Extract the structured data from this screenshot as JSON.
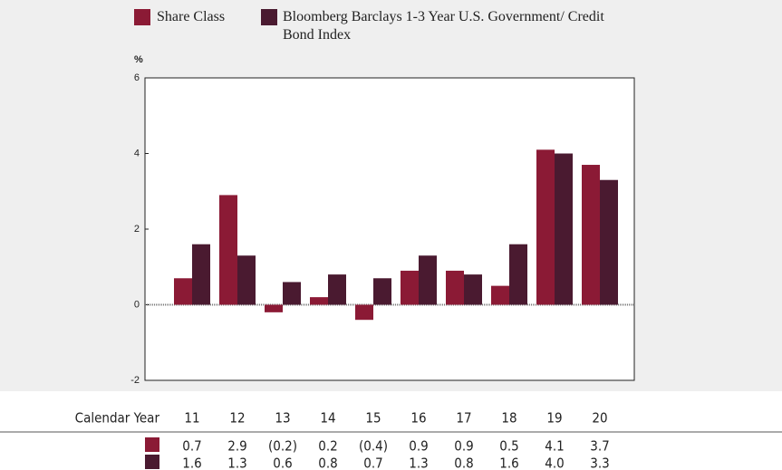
{
  "chart_data": {
    "type": "bar",
    "y_label": "%",
    "x_label": "Calendar Year",
    "categories": [
      "11",
      "12",
      "13",
      "14",
      "15",
      "16",
      "17",
      "18",
      "19",
      "20"
    ],
    "series": [
      {
        "name": "Share Class",
        "color": "#8b1a35",
        "values": [
          0.7,
          2.9,
          -0.2,
          0.2,
          -0.4,
          0.9,
          0.9,
          0.5,
          4.1,
          3.7
        ],
        "value_labels": [
          "0.7",
          "2.9",
          "(0.2)",
          "0.2",
          "(0.4)",
          "0.9",
          "0.9",
          "0.5",
          "4.1",
          "3.7"
        ]
      },
      {
        "name": "Bloomberg Barclays 1-3 Year U.S. Government/ Credit Bond Index",
        "color": "#4a1a30",
        "values": [
          1.6,
          1.3,
          0.6,
          0.8,
          0.7,
          1.3,
          0.8,
          1.6,
          4.0,
          3.3
        ],
        "value_labels": [
          "1.6",
          "1.3",
          "0.6",
          "0.8",
          "0.7",
          "1.3",
          "0.8",
          "1.6",
          "4.0",
          "3.3"
        ]
      }
    ],
    "ylim": [
      -2,
      6
    ],
    "yticks": [
      -2,
      0,
      2,
      4,
      6
    ],
    "grid": false
  }
}
